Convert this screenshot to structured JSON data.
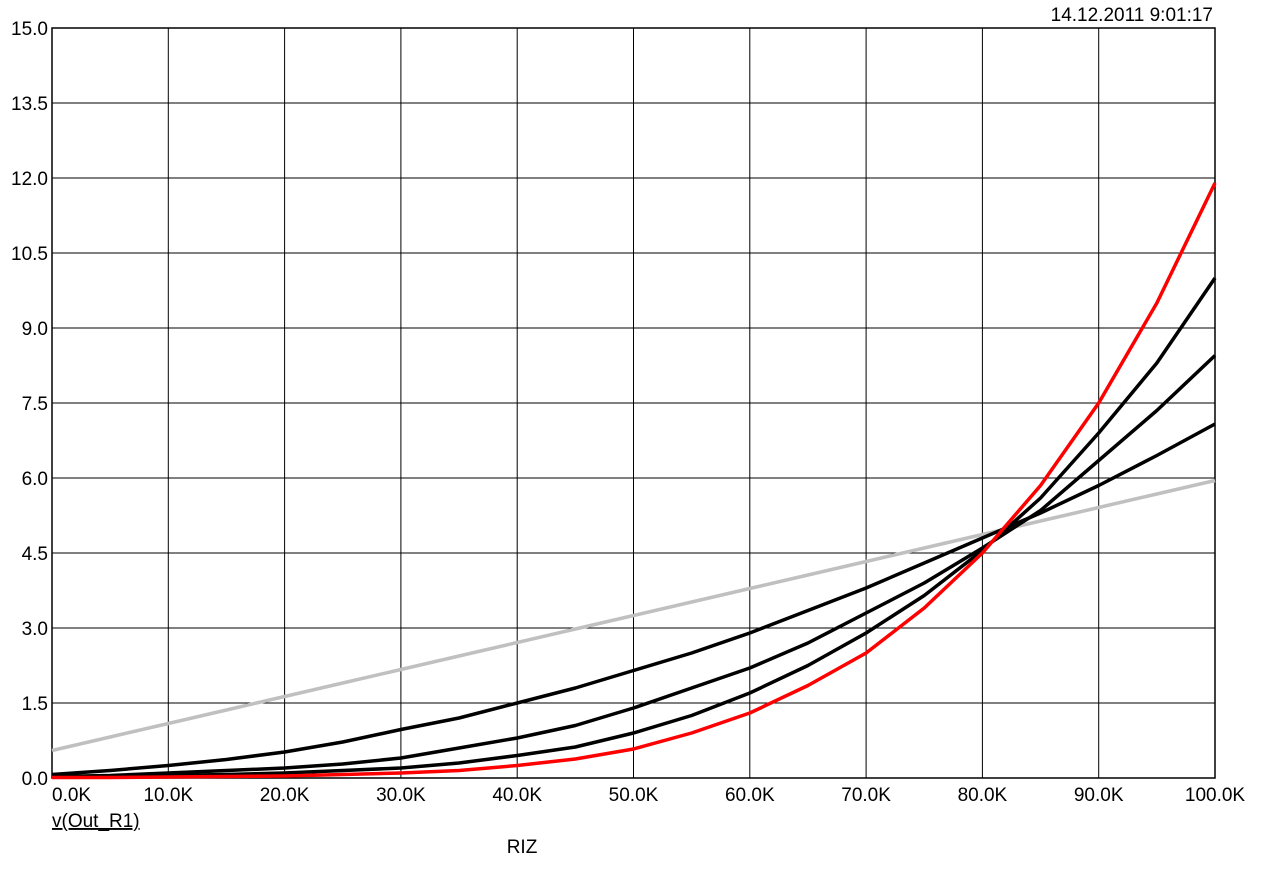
{
  "chart_data": {
    "type": "line",
    "timestamp": "14.12.2011 9:01:17",
    "y_label": "v(Out_R1)",
    "x_label": "RIZ",
    "grid": true,
    "xlim": [
      0,
      100000
    ],
    "ylim": [
      0,
      15
    ],
    "xticks": [
      {
        "value": 0,
        "label": "0.0K"
      },
      {
        "value": 10000,
        "label": "10.0K"
      },
      {
        "value": 20000,
        "label": "20.0K"
      },
      {
        "value": 30000,
        "label": "30.0K"
      },
      {
        "value": 40000,
        "label": "40.0K"
      },
      {
        "value": 50000,
        "label": "50.0K"
      },
      {
        "value": 60000,
        "label": "60.0K"
      },
      {
        "value": 70000,
        "label": "70.0K"
      },
      {
        "value": 80000,
        "label": "80.0K"
      },
      {
        "value": 90000,
        "label": "90.0K"
      },
      {
        "value": 100000,
        "label": "100.0K"
      }
    ],
    "yticks": [
      {
        "value": 0,
        "label": "0.0"
      },
      1.5,
      {
        "value": 3,
        "label": "3.0"
      },
      4.5,
      {
        "value": 6,
        "label": "6.0"
      },
      7.5,
      {
        "value": 9,
        "label": "9.0"
      },
      10.5,
      {
        "value": 12,
        "label": "12.0"
      },
      13.5,
      {
        "value": 15,
        "label": "15.0"
      }
    ],
    "x": [
      0,
      5000,
      10000,
      15000,
      20000,
      25000,
      30000,
      35000,
      40000,
      45000,
      50000,
      55000,
      60000,
      65000,
      70000,
      75000,
      80000,
      85000,
      90000,
      95000,
      100000
    ],
    "series": [
      {
        "color": "#c0c0c0",
        "values": [
          0.55,
          0.82,
          1.09,
          1.36,
          1.63,
          1.9,
          2.17,
          2.44,
          2.71,
          2.98,
          3.25,
          3.52,
          3.79,
          4.06,
          4.33,
          4.6,
          4.87,
          5.14,
          5.41,
          5.68,
          5.95
        ]
      },
      {
        "color": "#000000",
        "values": [
          0.07,
          0.15,
          0.25,
          0.37,
          0.52,
          0.72,
          0.97,
          1.2,
          1.5,
          1.8,
          2.15,
          2.5,
          2.9,
          3.35,
          3.8,
          4.3,
          4.8,
          5.3,
          5.85,
          6.45,
          7.08
        ]
      },
      {
        "color": "#000000",
        "values": [
          0.03,
          0.05,
          0.1,
          0.15,
          0.2,
          0.28,
          0.4,
          0.6,
          0.8,
          1.05,
          1.4,
          1.8,
          2.2,
          2.7,
          3.3,
          3.9,
          4.6,
          5.35,
          6.35,
          7.35,
          8.45
        ]
      },
      {
        "color": "#000000",
        "values": [
          0.02,
          0.03,
          0.05,
          0.07,
          0.1,
          0.15,
          0.2,
          0.3,
          0.45,
          0.62,
          0.9,
          1.25,
          1.7,
          2.25,
          2.9,
          3.65,
          4.55,
          5.6,
          6.9,
          8.3,
          10.0
        ]
      },
      {
        "color": "#ff0000",
        "values": [
          0.01,
          0.01,
          0.02,
          0.03,
          0.04,
          0.07,
          0.1,
          0.15,
          0.25,
          0.38,
          0.58,
          0.9,
          1.3,
          1.85,
          2.5,
          3.4,
          4.5,
          5.85,
          7.5,
          9.5,
          11.9
        ]
      }
    ]
  }
}
